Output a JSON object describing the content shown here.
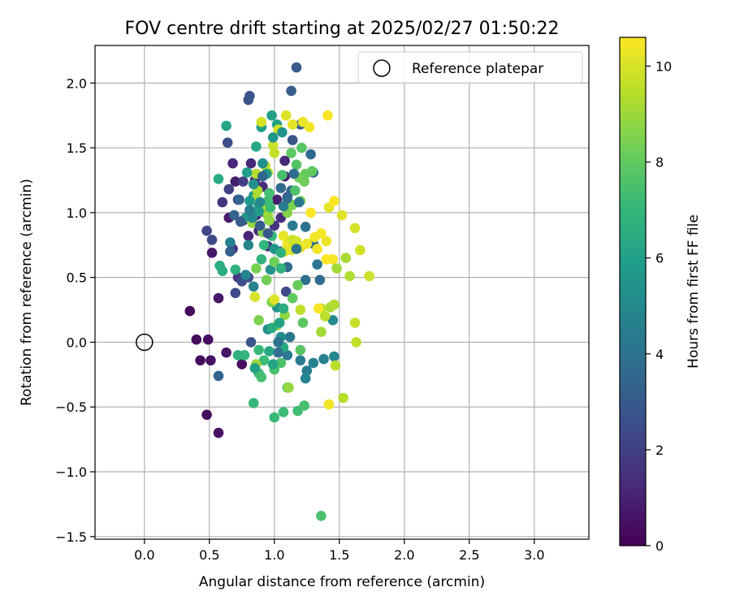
{
  "chart_data": {
    "type": "scatter",
    "title": "FOV centre drift starting at 2025/02/27 01:50:22",
    "xlabel": "Angular distance from reference (arcmin)",
    "ylabel": "Rotation from reference (arcmin)",
    "xlim": [
      -0.38,
      3.42
    ],
    "ylim": [
      -1.52,
      2.29
    ],
    "xticks": [
      0.0,
      0.5,
      1.0,
      1.5,
      2.0,
      2.5,
      3.0
    ],
    "xtick_labels": [
      "0.0",
      "0.5",
      "1.0",
      "1.5",
      "2.0",
      "2.5",
      "3.0"
    ],
    "yticks": [
      -1.5,
      -1.0,
      -0.5,
      0.0,
      0.5,
      1.0,
      1.5,
      2.0
    ],
    "ytick_labels": [
      "−1.5",
      "−1.0",
      "−0.5",
      "0.0",
      "0.5",
      "1.0",
      "1.5",
      "2.0"
    ],
    "grid": true,
    "legend": {
      "position": "top-right",
      "entries": [
        "Reference platepar"
      ]
    },
    "reference_point": {
      "x": 0.0,
      "y": 0.0,
      "label": "Reference platepar",
      "marker": "open-circle"
    },
    "colorbar": {
      "label": "Hours from first FF file",
      "colormap": "viridis",
      "range": [
        0,
        10.6
      ],
      "ticks": [
        0,
        2,
        4,
        6,
        8,
        10
      ],
      "tick_labels": [
        "0",
        "2",
        "4",
        "6",
        "8",
        "10"
      ],
      "colors": [
        "#440154",
        "#482878",
        "#3e4989",
        "#31688e",
        "#26828e",
        "#1f9e89",
        "#35b779",
        "#6ece58",
        "#b5de2b",
        "#fde725"
      ]
    },
    "points": [
      {
        "x": 0.35,
        "y": 0.24,
        "h": 0.2
      },
      {
        "x": 0.4,
        "y": 0.02,
        "h": 0.3
      },
      {
        "x": 0.49,
        "y": 0.02,
        "h": 0.4
      },
      {
        "x": 0.43,
        "y": -0.14,
        "h": 0.3
      },
      {
        "x": 0.51,
        "y": -0.14,
        "h": 0.5
      },
      {
        "x": 0.48,
        "y": -0.56,
        "h": 0.3
      },
      {
        "x": 0.57,
        "y": -0.7,
        "h": 0.5
      },
      {
        "x": 0.63,
        "y": -0.08,
        "h": 0.6
      },
      {
        "x": 0.75,
        "y": -0.17,
        "h": 0.4
      },
      {
        "x": 0.57,
        "y": 0.34,
        "h": 0.7
      },
      {
        "x": 0.65,
        "y": 0.96,
        "h": 0.8
      },
      {
        "x": 0.7,
        "y": 1.24,
        "h": 0.9
      },
      {
        "x": 0.76,
        "y": 0.94,
        "h": 1.0
      },
      {
        "x": 0.8,
        "y": 0.82,
        "h": 1.1
      },
      {
        "x": 0.85,
        "y": 1.25,
        "h": 1.2
      },
      {
        "x": 0.82,
        "y": 1.38,
        "h": 1.3
      },
      {
        "x": 0.91,
        "y": 1.2,
        "h": 1.4
      },
      {
        "x": 0.95,
        "y": 0.74,
        "h": 1.5
      },
      {
        "x": 1.0,
        "y": 0.9,
        "h": 1.6
      },
      {
        "x": 1.08,
        "y": 1.4,
        "h": 1.2
      },
      {
        "x": 1.08,
        "y": 1.28,
        "h": 0.8
      },
      {
        "x": 1.02,
        "y": 1.1,
        "h": 0.9
      },
      {
        "x": 0.72,
        "y": 0.5,
        "h": 1.7
      },
      {
        "x": 0.68,
        "y": 0.72,
        "h": 1.8
      },
      {
        "x": 0.88,
        "y": 0.86,
        "h": 1.3
      },
      {
        "x": 1.05,
        "y": 0.96,
        "h": 1.4
      },
      {
        "x": 1.12,
        "y": 0.72,
        "h": 1.5
      },
      {
        "x": 0.86,
        "y": 0.98,
        "h": 1.0
      },
      {
        "x": 0.6,
        "y": 1.08,
        "h": 1.6
      },
      {
        "x": 0.68,
        "y": 1.38,
        "h": 1.1
      },
      {
        "x": 0.72,
        "y": 1.1,
        "h": 1.9
      },
      {
        "x": 0.76,
        "y": 1.24,
        "h": 2.0
      },
      {
        "x": 0.93,
        "y": 1.0,
        "h": 1.8
      },
      {
        "x": 1.1,
        "y": 1.12,
        "h": 1.9
      },
      {
        "x": 0.65,
        "y": 1.18,
        "h": 2.1
      },
      {
        "x": 0.48,
        "y": 0.86,
        "h": 2.2
      },
      {
        "x": 0.52,
        "y": 0.79,
        "h": 2.3
      },
      {
        "x": 0.52,
        "y": 0.69,
        "h": 0.7
      },
      {
        "x": 0.7,
        "y": 0.38,
        "h": 2.4
      },
      {
        "x": 0.75,
        "y": 0.47,
        "h": 2.5
      },
      {
        "x": 0.8,
        "y": 0.5,
        "h": 2.6
      },
      {
        "x": 0.8,
        "y": 1.87,
        "h": 2.7
      },
      {
        "x": 0.81,
        "y": 1.9,
        "h": 2.8
      },
      {
        "x": 1.17,
        "y": 2.12,
        "h": 3.0
      },
      {
        "x": 1.13,
        "y": 1.94,
        "h": 3.1
      },
      {
        "x": 1.2,
        "y": 1.68,
        "h": 3.2
      },
      {
        "x": 1.14,
        "y": 1.56,
        "h": 2.9
      },
      {
        "x": 1.05,
        "y": 0.7,
        "h": 3.3
      },
      {
        "x": 1.09,
        "y": 0.39,
        "h": 2.4
      },
      {
        "x": 0.64,
        "y": 1.54,
        "h": 2.5
      },
      {
        "x": 0.57,
        "y": -0.26,
        "h": 3.4
      },
      {
        "x": 0.82,
        "y": 0.0,
        "h": 2.8
      },
      {
        "x": 1.13,
        "y": 1.17,
        "h": 3.5
      },
      {
        "x": 1.28,
        "y": 1.45,
        "h": 3.6
      },
      {
        "x": 1.3,
        "y": 1.31,
        "h": 3.7
      },
      {
        "x": 1.3,
        "y": 0.76,
        "h": 3.8
      },
      {
        "x": 1.24,
        "y": 0.89,
        "h": 3.9
      },
      {
        "x": 1.1,
        "y": 0.58,
        "h": 3.6
      },
      {
        "x": 1.35,
        "y": 0.48,
        "h": 3.7
      },
      {
        "x": 1.24,
        "y": 0.48,
        "h": 4.0
      },
      {
        "x": 1.33,
        "y": 0.6,
        "h": 4.1
      },
      {
        "x": 1.12,
        "y": 0.04,
        "h": 4.2
      },
      {
        "x": 1.1,
        "y": -0.1,
        "h": 4.3
      },
      {
        "x": 1.2,
        "y": -0.14,
        "h": 4.4
      },
      {
        "x": 1.25,
        "y": -0.22,
        "h": 4.5
      },
      {
        "x": 1.3,
        "y": -0.16,
        "h": 4.6
      },
      {
        "x": 1.38,
        "y": -0.13,
        "h": 4.7
      },
      {
        "x": 1.24,
        "y": -0.28,
        "h": 4.8
      },
      {
        "x": 1.46,
        "y": -0.11,
        "h": 4.9
      },
      {
        "x": 1.45,
        "y": 0.17,
        "h": 5.0
      },
      {
        "x": 1.05,
        "y": 0.04,
        "h": 5.1
      },
      {
        "x": 0.95,
        "y": 0.1,
        "h": 5.2
      },
      {
        "x": 1.02,
        "y": 0.27,
        "h": 5.3
      },
      {
        "x": 0.97,
        "y": 0.56,
        "h": 5.4
      },
      {
        "x": 1.0,
        "y": 0.72,
        "h": 5.5
      },
      {
        "x": 0.78,
        "y": 0.96,
        "h": 5.6
      },
      {
        "x": 0.84,
        "y": 1.13,
        "h": 5.7
      },
      {
        "x": 0.88,
        "y": 1.06,
        "h": 5.8
      },
      {
        "x": 0.9,
        "y": 1.66,
        "h": 5.9
      },
      {
        "x": 0.98,
        "y": 1.75,
        "h": 6.0
      },
      {
        "x": 1.02,
        "y": 1.68,
        "h": 6.1
      },
      {
        "x": 0.63,
        "y": 1.67,
        "h": 6.2
      },
      {
        "x": 0.86,
        "y": 1.51,
        "h": 6.3
      },
      {
        "x": 0.57,
        "y": 1.26,
        "h": 6.4
      },
      {
        "x": 0.58,
        "y": 0.59,
        "h": 6.5
      },
      {
        "x": 0.6,
        "y": 0.55,
        "h": 6.6
      },
      {
        "x": 0.7,
        "y": 0.56,
        "h": 6.7
      },
      {
        "x": 0.72,
        "y": -0.1,
        "h": 6.8
      },
      {
        "x": 0.77,
        "y": -0.1,
        "h": 6.9
      },
      {
        "x": 0.84,
        "y": -0.47,
        "h": 7.0
      },
      {
        "x": 1.0,
        "y": -0.58,
        "h": 7.1
      },
      {
        "x": 1.07,
        "y": -0.54,
        "h": 7.2
      },
      {
        "x": 1.18,
        "y": -0.53,
        "h": 7.3
      },
      {
        "x": 1.23,
        "y": -0.49,
        "h": 7.4
      },
      {
        "x": 1.36,
        "y": -1.34,
        "h": 7.5
      },
      {
        "x": 0.88,
        "y": -0.06,
        "h": 7.1
      },
      {
        "x": 0.92,
        "y": -0.14,
        "h": 7.2
      },
      {
        "x": 0.88,
        "y": -0.24,
        "h": 7.3
      },
      {
        "x": 0.9,
        "y": -0.27,
        "h": 7.4
      },
      {
        "x": 1.0,
        "y": -0.21,
        "h": 7.5
      },
      {
        "x": 1.05,
        "y": -0.16,
        "h": 7.6
      },
      {
        "x": 1.1,
        "y": -0.35,
        "h": 7.7
      },
      {
        "x": 1.2,
        "y": -0.06,
        "h": 7.8
      },
      {
        "x": 1.22,
        "y": 0.15,
        "h": 7.9
      },
      {
        "x": 1.14,
        "y": 0.34,
        "h": 8.0
      },
      {
        "x": 1.18,
        "y": 0.44,
        "h": 8.1
      },
      {
        "x": 1.0,
        "y": 0.62,
        "h": 8.2
      },
      {
        "x": 0.94,
        "y": 0.48,
        "h": 8.3
      },
      {
        "x": 0.86,
        "y": 0.57,
        "h": 8.4
      },
      {
        "x": 0.88,
        "y": 0.17,
        "h": 8.5
      },
      {
        "x": 0.98,
        "y": 0.31,
        "h": 8.6
      },
      {
        "x": 1.02,
        "y": 0.13,
        "h": 8.7
      },
      {
        "x": 1.08,
        "y": 0.21,
        "h": 8.8
      },
      {
        "x": 1.11,
        "y": -0.35,
        "h": 8.9
      },
      {
        "x": 0.86,
        "y": -0.17,
        "h": 9.0
      },
      {
        "x": 1.36,
        "y": 0.08,
        "h": 9.1
      },
      {
        "x": 1.43,
        "y": 0.27,
        "h": 9.2
      },
      {
        "x": 1.46,
        "y": 0.29,
        "h": 9.3
      },
      {
        "x": 1.53,
        "y": -0.43,
        "h": 9.4
      },
      {
        "x": 1.47,
        "y": -0.18,
        "h": 9.5
      },
      {
        "x": 1.63,
        "y": 0.0,
        "h": 9.6
      },
      {
        "x": 1.62,
        "y": 0.15,
        "h": 9.7
      },
      {
        "x": 1.73,
        "y": 0.51,
        "h": 9.8
      },
      {
        "x": 1.66,
        "y": 0.71,
        "h": 9.9
      },
      {
        "x": 1.62,
        "y": 0.88,
        "h": 10.0
      },
      {
        "x": 1.52,
        "y": 0.98,
        "h": 10.1
      },
      {
        "x": 1.42,
        "y": 1.04,
        "h": 10.2
      },
      {
        "x": 1.4,
        "y": 0.78,
        "h": 10.3
      },
      {
        "x": 1.33,
        "y": 0.72,
        "h": 10.4
      },
      {
        "x": 1.45,
        "y": 0.64,
        "h": 10.5
      },
      {
        "x": 1.4,
        "y": 0.64,
        "h": 10.6
      },
      {
        "x": 1.48,
        "y": 0.57,
        "h": 9.1
      },
      {
        "x": 1.55,
        "y": 0.65,
        "h": 9.2
      },
      {
        "x": 1.58,
        "y": 0.51,
        "h": 9.3
      },
      {
        "x": 1.36,
        "y": 0.26,
        "h": 9.4
      },
      {
        "x": 1.39,
        "y": 0.2,
        "h": 9.5
      },
      {
        "x": 1.2,
        "y": 0.25,
        "h": 9.6
      },
      {
        "x": 1.42,
        "y": -0.48,
        "h": 10.4
      },
      {
        "x": 1.34,
        "y": 0.26,
        "h": 10.5
      },
      {
        "x": 0.85,
        "y": 0.35,
        "h": 10.0
      },
      {
        "x": 1.0,
        "y": 0.33,
        "h": 10.1
      },
      {
        "x": 1.07,
        "y": 0.82,
        "h": 10.2
      },
      {
        "x": 1.1,
        "y": 0.76,
        "h": 10.3
      },
      {
        "x": 1.14,
        "y": 0.79,
        "h": 9.8
      },
      {
        "x": 1.17,
        "y": 0.78,
        "h": 9.9
      },
      {
        "x": 1.08,
        "y": 0.7,
        "h": 10.0
      },
      {
        "x": 1.13,
        "y": 0.71,
        "h": 10.1
      },
      {
        "x": 1.2,
        "y": 0.73,
        "h": 10.2
      },
      {
        "x": 1.25,
        "y": 0.76,
        "h": 10.3
      },
      {
        "x": 1.31,
        "y": 0.81,
        "h": 10.4
      },
      {
        "x": 1.36,
        "y": 0.84,
        "h": 10.5
      },
      {
        "x": 1.28,
        "y": 1.0,
        "h": 10.6
      },
      {
        "x": 1.46,
        "y": 1.09,
        "h": 10.6
      },
      {
        "x": 1.41,
        "y": 1.75,
        "h": 10.5
      },
      {
        "x": 1.27,
        "y": 1.66,
        "h": 10.4
      },
      {
        "x": 1.22,
        "y": 1.7,
        "h": 10.3
      },
      {
        "x": 1.14,
        "y": 1.68,
        "h": 10.2
      },
      {
        "x": 1.09,
        "y": 1.75,
        "h": 10.1
      },
      {
        "x": 0.9,
        "y": 1.7,
        "h": 10.0
      },
      {
        "x": 1.03,
        "y": 1.64,
        "h": 9.9
      },
      {
        "x": 0.99,
        "y": 1.52,
        "h": 9.8
      },
      {
        "x": 1.0,
        "y": 1.46,
        "h": 9.7
      },
      {
        "x": 0.93,
        "y": 1.36,
        "h": 9.6
      },
      {
        "x": 0.95,
        "y": 1.31,
        "h": 9.5
      },
      {
        "x": 0.86,
        "y": 1.3,
        "h": 9.4
      },
      {
        "x": 0.87,
        "y": 1.17,
        "h": 9.3
      },
      {
        "x": 0.86,
        "y": 1.11,
        "h": 9.2
      },
      {
        "x": 0.91,
        "y": 1.05,
        "h": 9.1
      },
      {
        "x": 0.95,
        "y": 0.98,
        "h": 9.0
      },
      {
        "x": 0.83,
        "y": 0.92,
        "h": 8.9
      },
      {
        "x": 0.96,
        "y": 0.94,
        "h": 8.8
      },
      {
        "x": 0.91,
        "y": 0.85,
        "h": 8.7
      },
      {
        "x": 1.1,
        "y": 1.0,
        "h": 8.6
      },
      {
        "x": 1.14,
        "y": 1.06,
        "h": 8.5
      },
      {
        "x": 1.2,
        "y": 1.09,
        "h": 8.4
      },
      {
        "x": 1.19,
        "y": 1.27,
        "h": 8.3
      },
      {
        "x": 1.23,
        "y": 1.24,
        "h": 8.2
      },
      {
        "x": 1.24,
        "y": 1.3,
        "h": 8.1
      },
      {
        "x": 1.29,
        "y": 1.32,
        "h": 8.0
      },
      {
        "x": 1.13,
        "y": 1.46,
        "h": 7.9
      },
      {
        "x": 1.21,
        "y": 1.5,
        "h": 7.8
      },
      {
        "x": 1.17,
        "y": 1.37,
        "h": 7.7
      },
      {
        "x": 1.16,
        "y": 1.17,
        "h": 7.6
      },
      {
        "x": 1.06,
        "y": 1.29,
        "h": 7.5
      },
      {
        "x": 0.96,
        "y": 1.15,
        "h": 7.4
      },
      {
        "x": 0.95,
        "y": 1.09,
        "h": 7.3
      },
      {
        "x": 0.97,
        "y": 1.04,
        "h": 7.2
      },
      {
        "x": 0.98,
        "y": 0.82,
        "h": 7.1
      },
      {
        "x": 0.92,
        "y": 0.75,
        "h": 7.0
      },
      {
        "x": 0.9,
        "y": 0.64,
        "h": 6.9
      },
      {
        "x": 1.05,
        "y": 0.57,
        "h": 6.8
      },
      {
        "x": 1.05,
        "y": 0.69,
        "h": 6.7
      },
      {
        "x": 1.07,
        "y": 0.26,
        "h": 6.6
      },
      {
        "x": 0.98,
        "y": 0.11,
        "h": 6.5
      },
      {
        "x": 1.07,
        "y": -0.04,
        "h": 6.4
      },
      {
        "x": 0.96,
        "y": -0.07,
        "h": 6.3
      },
      {
        "x": 0.99,
        "y": -0.17,
        "h": 6.2
      },
      {
        "x": 1.04,
        "y": 0.15,
        "h": 6.1
      },
      {
        "x": 0.85,
        "y": -0.2,
        "h": 6.0
      },
      {
        "x": 0.79,
        "y": 1.31,
        "h": 5.9
      },
      {
        "x": 0.88,
        "y": 1.01,
        "h": 5.8
      },
      {
        "x": 0.81,
        "y": 1.09,
        "h": 5.7
      },
      {
        "x": 0.94,
        "y": 1.3,
        "h": 5.6
      },
      {
        "x": 0.99,
        "y": 1.58,
        "h": 5.5
      },
      {
        "x": 1.06,
        "y": 1.62,
        "h": 5.4
      },
      {
        "x": 0.91,
        "y": 1.38,
        "h": 5.3
      },
      {
        "x": 0.84,
        "y": 1.22,
        "h": 5.2
      },
      {
        "x": 0.89,
        "y": 1.08,
        "h": 5.1
      },
      {
        "x": 0.83,
        "y": 0.96,
        "h": 5.0
      },
      {
        "x": 0.8,
        "y": 0.75,
        "h": 4.9
      },
      {
        "x": 0.78,
        "y": 0.52,
        "h": 4.8
      },
      {
        "x": 0.84,
        "y": 0.43,
        "h": 4.7
      },
      {
        "x": 0.66,
        "y": 0.77,
        "h": 4.6
      },
      {
        "x": 0.81,
        "y": 1.02,
        "h": 4.5
      },
      {
        "x": 1.07,
        "y": 1.05,
        "h": 4.4
      },
      {
        "x": 1.14,
        "y": 0.9,
        "h": 4.3
      },
      {
        "x": 1.19,
        "y": 1.08,
        "h": 4.2
      },
      {
        "x": 1.17,
        "y": 0.72,
        "h": 4.1
      },
      {
        "x": 1.03,
        "y": 0.0,
        "h": 4.0
      },
      {
        "x": 1.03,
        "y": -0.08,
        "h": 3.9
      },
      {
        "x": 1.15,
        "y": 1.3,
        "h": 3.8
      },
      {
        "x": 1.1,
        "y": 1.11,
        "h": 3.7
      },
      {
        "x": 1.05,
        "y": 1.19,
        "h": 3.6
      },
      {
        "x": 0.91,
        "y": 1.28,
        "h": 3.5
      },
      {
        "x": 0.73,
        "y": 1.1,
        "h": 3.4
      },
      {
        "x": 0.69,
        "y": 0.98,
        "h": 3.3
      },
      {
        "x": 0.66,
        "y": 0.7,
        "h": 3.2
      },
      {
        "x": 0.74,
        "y": 0.93,
        "h": 3.1
      },
      {
        "x": 0.89,
        "y": 0.9,
        "h": 3.0
      },
      {
        "x": 0.95,
        "y": 0.84,
        "h": 2.9
      }
    ]
  }
}
